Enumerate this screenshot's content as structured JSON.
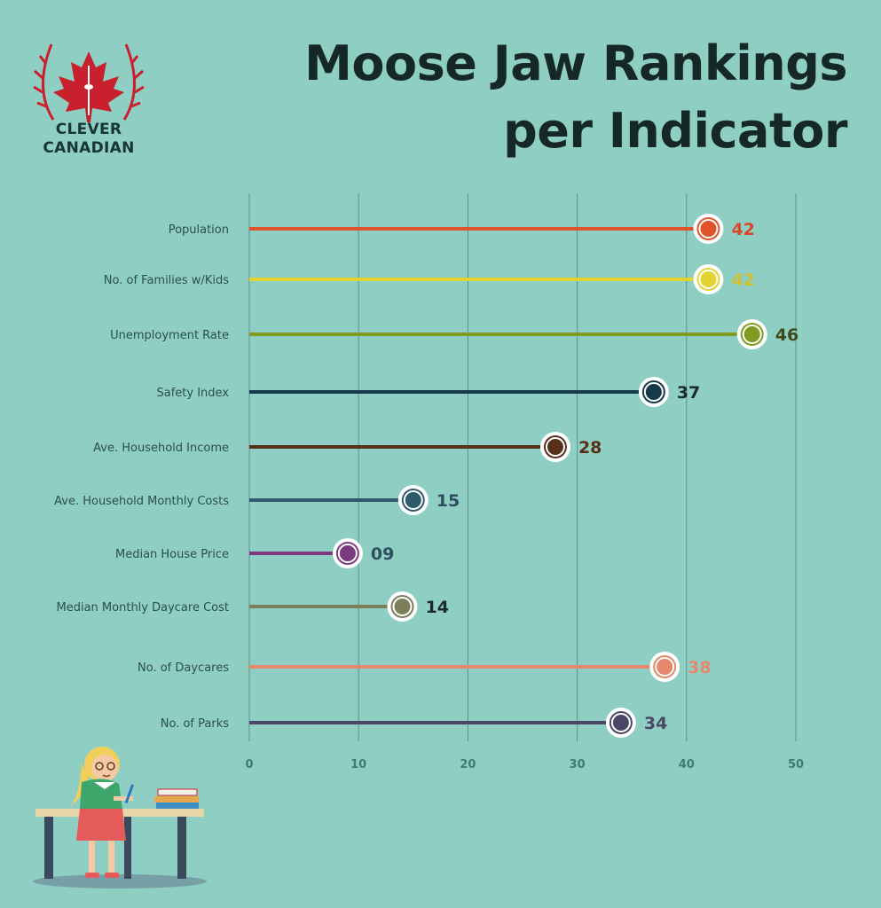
{
  "brand": {
    "line1": "CLEVER",
    "line2": "CANADIAN",
    "icon": "maple-leaf-with-tower-and-laurel-icon",
    "color": "#c8202c"
  },
  "title": {
    "line1": "Moose Jaw Rankings",
    "line2": "per Indicator"
  },
  "chart_data": {
    "type": "lollipop",
    "title": "Moose Jaw Rankings per Indicator",
    "xlim": [
      0,
      50
    ],
    "x_ticks": [
      "0",
      "10",
      "20",
      "30",
      "40",
      "50"
    ],
    "grid": "vertical",
    "colors": {
      "grid": "#5d9288",
      "tick": "#3f7d73",
      "category_label": "#2b4f4a"
    },
    "categories": [
      "Population",
      "No. of Families w/Kids",
      "Unemployment Rate",
      "Safety Index",
      "Ave. Household Income",
      "Ave. Household Monthly Costs",
      "Median House Price",
      "Median Monthly Daycare Cost",
      "No. of Daycares",
      "No. of Parks"
    ],
    "values": [
      42,
      42,
      46,
      37,
      28,
      15,
      9,
      14,
      38,
      34
    ],
    "value_labels": [
      "42",
      "42",
      "46",
      "37",
      "28",
      "15",
      "09",
      "14",
      "38",
      "34"
    ],
    "series_colors": [
      "#e0532b",
      "#e3d330",
      "#7f9b20",
      "#173a4a",
      "#5a2f18",
      "#2f5a6e",
      "#7b3a7c",
      "#7c7f5a",
      "#e5876a",
      "#4a4766"
    ],
    "label_colors": [
      "#d9462a",
      "#d2c02e",
      "#3f4a1c",
      "#1b2a30",
      "#5a2f18",
      "#2f4e62",
      "#2f4e62",
      "#1b2a30",
      "#e5876a",
      "#4a4766"
    ]
  },
  "illustration": {
    "icon": "girl-studying-at-desk-illustration"
  }
}
